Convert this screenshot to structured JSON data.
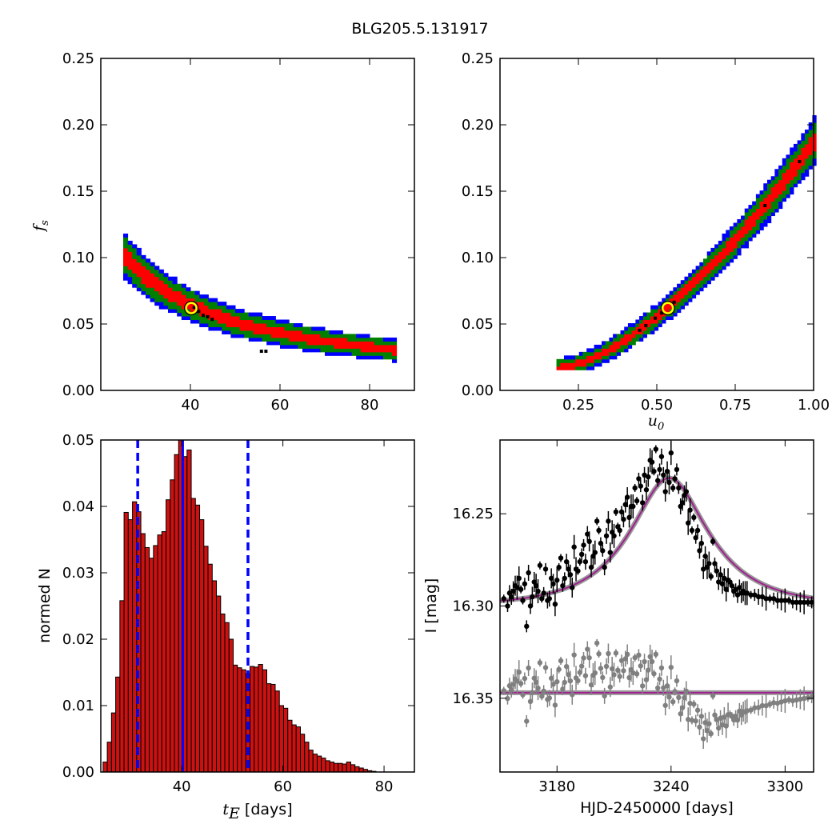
{
  "title": "BLG205.5.131917",
  "colors": {
    "sigma3": "#0000ff",
    "sigma2": "#008000",
    "sigma1": "#ff0000",
    "best": "#000000",
    "marker": "#ffff00",
    "hist": "#cc1111",
    "vline": "#0000ff",
    "model": "#a02090",
    "band": "#808080",
    "gray": "#808080"
  },
  "chart_data": [
    {
      "panel": "top-left",
      "type": "heatmap",
      "title": "",
      "xlabel": "",
      "ylabel_main": "f",
      "ylabel_sub": "s",
      "xlim": [
        20,
        90
      ],
      "ylim": [
        0.0,
        0.25
      ],
      "xticks": [
        "40",
        "60",
        "80"
      ],
      "xtick_values": [
        40,
        60,
        80
      ],
      "yticks": [
        "0.00",
        "0.05",
        "0.10",
        "0.15",
        "0.20",
        "0.25"
      ],
      "ytick_values": [
        0,
        0.05,
        0.1,
        0.15,
        0.2,
        0.25
      ],
      "ridge": "fs ≈ 2.5 / tE (approx.)",
      "tE_range": [
        25,
        85
      ],
      "best_fit": {
        "x": 40.2,
        "y": 0.062
      }
    },
    {
      "panel": "top-right",
      "type": "heatmap",
      "xlabel_main": "u",
      "xlabel_sub": "0",
      "ylabel": "",
      "xlim": [
        0.0,
        1.0
      ],
      "ylim": [
        0.0,
        0.25
      ],
      "xticks": [
        "0.25",
        "0.50",
        "0.75",
        "1.00"
      ],
      "xtick_values": [
        0.25,
        0.5,
        0.75,
        1.0
      ],
      "yticks": [
        "0.00",
        "0.05",
        "0.10",
        "0.15",
        "0.20",
        "0.25"
      ],
      "ytick_values": [
        0,
        0.05,
        0.1,
        0.15,
        0.2,
        0.25
      ],
      "u0_range": [
        0.18,
        1.0
      ],
      "best_fit": {
        "x": 0.535,
        "y": 0.062
      }
    },
    {
      "panel": "bottom-left",
      "type": "bar",
      "xlabel_main": "t",
      "xlabel_sub": "E",
      "xlabel_unit": " [days]",
      "ylabel": "normed N",
      "xlim": [
        24,
        86
      ],
      "ylim": [
        0.0,
        0.05
      ],
      "xticks": [
        "40",
        "60",
        "80"
      ],
      "xtick_values": [
        40,
        60,
        80
      ],
      "yticks": [
        "0.00",
        "0.01",
        "0.02",
        "0.03",
        "0.04",
        "0.05"
      ],
      "ytick_values": [
        0,
        0.01,
        0.02,
        0.03,
        0.04,
        0.05
      ],
      "bin_start": 24.45,
      "bin_width": 0.83,
      "values": [
        0.0015,
        0.0045,
        0.0089,
        0.0143,
        0.0258,
        0.0391,
        0.038,
        0.0407,
        0.0392,
        0.0359,
        0.0338,
        0.0322,
        0.0341,
        0.0357,
        0.0362,
        0.041,
        0.044,
        0.0478,
        0.05,
        0.0475,
        0.0485,
        0.0412,
        0.0402,
        0.038,
        0.034,
        0.0313,
        0.0288,
        0.0265,
        0.0238,
        0.0225,
        0.02,
        0.0161,
        0.0157,
        0.0154,
        0.0148,
        0.0159,
        0.0158,
        0.0162,
        0.0154,
        0.0133,
        0.0132,
        0.0122,
        0.01,
        0.0096,
        0.0078,
        0.0071,
        0.0068,
        0.0057,
        0.0045,
        0.0033,
        0.0027,
        0.0024,
        0.0021,
        0.0017,
        0.0015,
        0.0013,
        0.0013,
        0.0012,
        0.0015,
        0.0011,
        0.0008,
        0.0006,
        0.0004,
        0.0002,
        0.0001
      ],
      "median": 40.2,
      "lower": 31.3,
      "upper": 53.1
    },
    {
      "panel": "bottom-right",
      "type": "scatter",
      "xlabel": "HJD-2450000 [days]",
      "ylabel": "I [mag]",
      "xlim": [
        3150,
        3315
      ],
      "ylim": [
        16.39,
        16.21
      ],
      "inverted_y": true,
      "xticks": [
        "3180",
        "3240",
        "3300"
      ],
      "xtick_values": [
        3180,
        3240,
        3300
      ],
      "yticks": [
        "16.25",
        "16.30",
        "16.35"
      ],
      "ytick_values": [
        16.25,
        16.3,
        16.35
      ],
      "model": {
        "t0": 3239,
        "tE": 40.2,
        "u0": 0.535,
        "fs": 0.062,
        "I_base": 16.3
      },
      "residual_baseline": 16.347,
      "series": [
        {
          "name": "data",
          "color": "black",
          "points": [
            [
              3152,
              16.296
            ],
            [
              3154,
              16.3
            ],
            [
              3156,
              16.295
            ],
            [
              3158,
              16.289
            ],
            [
              3160,
              16.285
            ],
            [
              3162,
              16.297
            ],
            [
              3164,
              16.311
            ],
            [
              3166,
              16.3
            ],
            [
              3168,
              16.287
            ],
            [
              3170,
              16.292
            ],
            [
              3172,
              16.296
            ],
            [
              3174,
              16.28
            ],
            [
              3176,
              16.296
            ],
            [
              3178,
              16.288
            ],
            [
              3180,
              16.286
            ],
            [
              3182,
              16.274
            ],
            [
              3184,
              16.285
            ],
            [
              3186,
              16.28
            ],
            [
              3188,
              16.29
            ],
            [
              3190,
              16.28
            ],
            [
              3192,
              16.276
            ],
            [
              3194,
              16.267
            ],
            [
              3196,
              16.261
            ],
            [
              3198,
              16.279
            ],
            [
              3200,
              16.271
            ],
            [
              3202,
              16.259
            ],
            [
              3204,
              16.27
            ],
            [
              3206,
              16.262
            ],
            [
              3208,
              16.271
            ],
            [
              3210,
              16.262
            ],
            [
              3212,
              16.257
            ],
            [
              3214,
              16.249
            ],
            [
              3216,
              16.245
            ],
            [
              3218,
              16.252
            ],
            [
              3220,
              16.246
            ],
            [
              3222,
              16.243
            ],
            [
              3224,
              16.235
            ],
            [
              3226,
              16.229
            ],
            [
              3228,
              16.23
            ],
            [
              3230,
              16.222
            ],
            [
              3232,
              16.215
            ],
            [
              3234,
              16.226
            ],
            [
              3236,
              16.229
            ],
            [
              3238,
              16.227
            ],
            [
              3240,
              16.217
            ],
            [
              3242,
              16.231
            ],
            [
              3244,
              16.236
            ],
            [
              3246,
              16.244
            ],
            [
              3248,
              16.238
            ],
            [
              3250,
              16.248
            ],
            [
              3252,
              16.252
            ],
            [
              3254,
              16.259
            ],
            [
              3256,
              16.266
            ],
            [
              3258,
              16.273
            ],
            [
              3260,
              16.277
            ],
            [
              3262,
              16.265
            ],
            [
              3264,
              16.281
            ],
            [
              3266,
              16.283
            ],
            [
              3268,
              16.285
            ],
            [
              3270,
              16.286
            ],
            [
              3272,
              16.289
            ],
            [
              3274,
              16.291
            ],
            [
              3276,
              16.29
            ],
            [
              3278,
              16.292
            ],
            [
              3280,
              16.293
            ],
            [
              3282,
              16.294
            ],
            [
              3284,
              16.294
            ],
            [
              3286,
              16.295
            ],
            [
              3288,
              16.295
            ],
            [
              3290,
              16.296
            ],
            [
              3292,
              16.296
            ],
            [
              3294,
              16.296
            ],
            [
              3296,
              16.297
            ],
            [
              3298,
              16.297
            ],
            [
              3300,
              16.297
            ],
            [
              3302,
              16.297
            ],
            [
              3304,
              16.298
            ],
            [
              3306,
              16.298
            ],
            [
              3308,
              16.298
            ],
            [
              3310,
              16.298
            ],
            [
              3312,
              16.298
            ],
            [
              3314,
              16.298
            ],
            [
              3155,
              16.293
            ],
            [
              3157,
              16.292
            ],
            [
              3159,
              16.29
            ],
            [
              3161,
              16.291
            ],
            [
              3163,
              16.288
            ],
            [
              3165,
              16.282
            ],
            [
              3167,
              16.295
            ],
            [
              3169,
              16.289
            ],
            [
              3171,
              16.278
            ],
            [
              3173,
              16.293
            ],
            [
              3175,
              16.297
            ],
            [
              3177,
              16.285
            ],
            [
              3179,
              16.299
            ],
            [
              3181,
              16.279
            ],
            [
              3183,
              16.289
            ],
            [
              3185,
              16.276
            ],
            [
              3187,
              16.283
            ],
            [
              3189,
              16.268
            ],
            [
              3191,
              16.281
            ],
            [
              3193,
              16.272
            ],
            [
              3195,
              16.276
            ],
            [
              3197,
              16.265
            ],
            [
              3199,
              16.273
            ],
            [
              3201,
              16.254
            ],
            [
              3203,
              16.266
            ],
            [
              3205,
              16.279
            ],
            [
              3207,
              16.254
            ],
            [
              3209,
              16.26
            ],
            [
              3211,
              16.249
            ],
            [
              3213,
              16.259
            ],
            [
              3215,
              16.253
            ],
            [
              3217,
              16.241
            ],
            [
              3219,
              16.246
            ],
            [
              3221,
              16.236
            ],
            [
              3223,
              16.231
            ],
            [
              3225,
              16.244
            ],
            [
              3227,
              16.237
            ],
            [
              3229,
              16.221
            ],
            [
              3231,
              16.227
            ],
            [
              3233,
              16.232
            ],
            [
              3235,
              16.219
            ],
            [
              3237,
              16.238
            ],
            [
              3239,
              16.233
            ],
            [
              3241,
              16.236
            ],
            [
              3243,
              16.226
            ],
            [
              3245,
              16.246
            ],
            [
              3247,
              16.24
            ],
            [
              3249,
              16.255
            ],
            [
              3251,
              16.259
            ],
            [
              3253,
              16.263
            ],
            [
              3255,
              16.27
            ],
            [
              3257,
              16.28
            ],
            [
              3259,
              16.279
            ],
            [
              3261,
              16.284
            ],
            [
              3263,
              16.277
            ],
            [
              3265,
              16.287
            ],
            [
              3267,
              16.288
            ],
            [
              3269,
              16.291
            ],
            [
              3271,
              16.287
            ],
            [
              3273,
              16.292
            ],
            [
              3275,
              16.294
            ],
            [
              3277,
              16.293
            ],
            [
              3279,
              16.293
            ]
          ]
        },
        {
          "name": "residuals",
          "color": "gray",
          "points": []
        }
      ]
    }
  ]
}
